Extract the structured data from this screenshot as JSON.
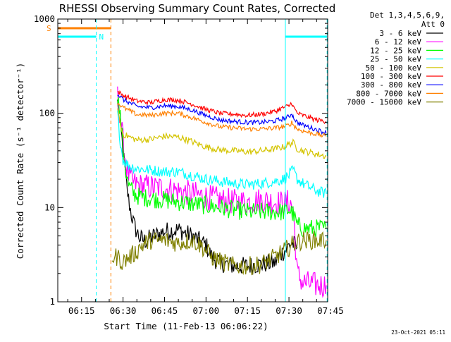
{
  "chart_data": {
    "type": "line",
    "title": "RHESSI Observing Summary Count Rates, Corrected",
    "xlabel": "Start Time (11-Feb-13 06:06:22)",
    "ylabel": "Corrected Count Rate (s⁻¹ detector⁻¹)",
    "y_scale": "log",
    "ylim": [
      1,
      1000
    ],
    "xlim_minutes": [
      6.4,
      104.0
    ],
    "x_ticks": [
      {
        "label": "06:15",
        "minutes": 15
      },
      {
        "label": "06:30",
        "minutes": 30
      },
      {
        "label": "06:45",
        "minutes": 45
      },
      {
        "label": "07:00",
        "minutes": 60
      },
      {
        "label": "07:15",
        "minutes": 75
      },
      {
        "label": "07:30",
        "minutes": 90
      },
      {
        "label": "07:45",
        "minutes": 105
      }
    ],
    "y_ticks": [
      {
        "label": "1",
        "value": 1
      },
      {
        "label": "10",
        "value": 10
      },
      {
        "label": "100",
        "value": 100
      },
      {
        "label": "1000",
        "value": 1000
      }
    ],
    "legend": {
      "header": [
        "Det 1,3,4,5,6,9,",
        "Att 0"
      ],
      "placement": "right",
      "entries": [
        {
          "label": "3 - 6 keV",
          "color": "#000000"
        },
        {
          "label": "6 - 12 keV",
          "color": "#ff00ff"
        },
        {
          "label": "12 - 25 keV",
          "color": "#00ff00"
        },
        {
          "label": "25 - 50 keV",
          "color": "#00ffff"
        },
        {
          "label": "50 - 100 keV",
          "color": "#d4c400"
        },
        {
          "label": "100 - 300 keV",
          "color": "#ff0000"
        },
        {
          "label": "300 - 800 keV",
          "color": "#0000ff"
        },
        {
          "label": "800 - 7000 keV",
          "color": "#ff8000"
        },
        {
          "label": "7000 - 15000 keV",
          "color": "#808000"
        }
      ]
    },
    "flags": [
      {
        "label": "S",
        "color": "#ff8000",
        "level": 800,
        "spans_minutes": [
          [
            6.4,
            25.6
          ]
        ]
      },
      {
        "label": "N",
        "color": "#00ffff",
        "level": 650,
        "spans_minutes": [
          [
            6.4,
            20.3
          ],
          [
            88.7,
            103.8
          ]
        ]
      }
    ],
    "markers": [
      {
        "color": "#ff8000",
        "minutes": 25.6,
        "style": "dashed"
      },
      {
        "color": "#00ffff",
        "minutes": 20.3,
        "style": "dashed"
      },
      {
        "color": "#00ffff",
        "minutes": 88.7,
        "style": "solid"
      },
      {
        "color": "#00ffff",
        "minutes": 103.8,
        "style": "dashed"
      }
    ],
    "series": [
      {
        "name": "3 - 6 keV",
        "color": "#000000",
        "x": [
          28.0,
          29.0,
          30.0,
          31.0,
          32.0,
          33.0,
          34.0,
          35.0,
          36.0,
          38.0,
          40.0,
          45.0,
          50.0,
          55.0,
          60.0,
          62.0,
          65.0,
          70.0,
          75.0,
          80.0,
          85.0,
          87.0,
          89.0,
          90.0,
          91.0,
          93.0
        ],
        "y": [
          130,
          80,
          40,
          20,
          12,
          8.5,
          6.5,
          5.5,
          4.8,
          4.4,
          4.8,
          5.6,
          5.8,
          5.0,
          4.0,
          3.0,
          2.6,
          2.4,
          2.4,
          2.5,
          2.6,
          3.2,
          3.6,
          4.0,
          4.2,
          3.8
        ]
      },
      {
        "name": "6 - 12 keV",
        "color": "#ff00ff",
        "x": [
          28.0,
          29.0,
          30.0,
          31.0,
          32.0,
          33.0,
          34.0,
          36.0,
          40.0,
          45.0,
          50.0,
          55.0,
          60.0,
          65.0,
          70.0,
          75.0,
          80.0,
          85.0,
          88.0,
          90.0,
          91.5,
          93.0,
          95.0,
          100.0,
          103.5
        ],
        "y": [
          150,
          90,
          50,
          30,
          22,
          19,
          18,
          17,
          16.5,
          16,
          15,
          14,
          13,
          12,
          11.5,
          11.5,
          12,
          11.5,
          11,
          11.5,
          10,
          2.0,
          1.6,
          1.5,
          1.5
        ]
      },
      {
        "name": "12 - 25 keV",
        "color": "#00ff00",
        "x": [
          28.0,
          29.0,
          30.0,
          31.0,
          32.0,
          34.0,
          36.0,
          40.0,
          45.0,
          50.0,
          55.0,
          60.0,
          65.0,
          70.0,
          75.0,
          80.0,
          85.0,
          88.0,
          90.0,
          91.5,
          93.0,
          95.0,
          100.0,
          103.5
        ],
        "y": [
          160,
          90,
          45,
          24,
          17,
          14,
          13,
          12.5,
          12,
          11.5,
          11,
          10.5,
          10,
          9.5,
          9.0,
          9.0,
          9.0,
          9.0,
          9.5,
          8.5,
          6.5,
          6.0,
          6.0,
          6.0
        ]
      },
      {
        "name": "25 - 50 keV",
        "color": "#00ffff",
        "x": [
          28.0,
          29.0,
          30.0,
          32.0,
          35.0,
          40.0,
          45.0,
          50.0,
          55.0,
          60.0,
          65.0,
          70.0,
          75.0,
          80.0,
          85.0,
          88.0,
          90.0,
          91.5,
          93.0,
          95.0,
          100.0,
          103.5
        ],
        "y": [
          100,
          50,
          32,
          28,
          26,
          25,
          24,
          24,
          22,
          20,
          19,
          18,
          17.5,
          18,
          19,
          20,
          22,
          25,
          20,
          18,
          15,
          14
        ]
      },
      {
        "name": "50 - 100 keV",
        "color": "#d4c400",
        "x": [
          28.0,
          29.0,
          30.0,
          35.0,
          40.0,
          45.0,
          50.0,
          55.0,
          60.0,
          65.0,
          70.0,
          75.0,
          80.0,
          85.0,
          88.0,
          90.0,
          91.5,
          93.0,
          95.0,
          100.0,
          103.5
        ],
        "y": [
          120,
          75,
          60,
          52,
          53,
          57,
          56,
          50,
          44,
          41,
          40,
          39,
          40,
          42,
          44,
          47,
          49,
          42,
          40,
          37,
          35
        ]
      },
      {
        "name": "100 - 300 keV",
        "color": "#ff0000",
        "x": [
          28.0,
          30.0,
          35.0,
          40.0,
          45.0,
          50.0,
          55.0,
          60.0,
          65.0,
          70.0,
          75.0,
          80.0,
          85.0,
          88.0,
          90.0,
          91.0,
          91.5,
          93.0,
          95.0,
          100.0,
          103.5
        ],
        "y": [
          170,
          155,
          135,
          130,
          140,
          138,
          125,
          110,
          100,
          98,
          95,
          98,
          105,
          115,
          120,
          130,
          118,
          100,
          95,
          85,
          82
        ]
      },
      {
        "name": "300 - 800 keV",
        "color": "#0000ff",
        "x": [
          28.0,
          30.0,
          35.0,
          40.0,
          45.0,
          50.0,
          55.0,
          60.0,
          65.0,
          70.0,
          75.0,
          80.0,
          85.0,
          88.0,
          90.0,
          91.0,
          91.5,
          93.0,
          95.0,
          100.0,
          103.5
        ],
        "y": [
          160,
          140,
          118,
          115,
          120,
          118,
          108,
          95,
          85,
          82,
          80,
          80,
          83,
          88,
          92,
          100,
          92,
          80,
          75,
          67,
          62
        ]
      },
      {
        "name": "800 - 7000 keV",
        "color": "#ff8000",
        "x": [
          28.0,
          30.0,
          35.0,
          40.0,
          45.0,
          50.0,
          55.0,
          60.0,
          65.0,
          70.0,
          75.0,
          80.0,
          85.0,
          88.0,
          90.0,
          91.0,
          91.5,
          93.0,
          95.0,
          100.0,
          103.5
        ],
        "y": [
          130,
          115,
          97,
          95,
          100,
          100,
          90,
          80,
          72,
          70,
          68,
          68,
          70,
          72,
          75,
          80,
          76,
          68,
          65,
          60,
          57
        ]
      },
      {
        "name": "7000 - 15000 keV",
        "color": "#808000",
        "x": [
          26.0,
          28.0,
          29.0,
          30.0,
          31.0,
          35.0,
          36.0,
          38.0,
          40.0,
          45.0,
          50.0,
          55.0,
          58.0,
          60.0,
          62.0,
          65.0,
          70.0,
          75.0,
          80.0,
          85.0,
          88.0,
          90.0,
          92.0,
          95.0,
          100.0,
          103.5
        ],
        "y": [
          3.0,
          3.0,
          2.8,
          2.6,
          2.8,
          3.4,
          3.8,
          4.2,
          4.5,
          4.5,
          4.2,
          4.5,
          4.0,
          3.5,
          3.0,
          2.7,
          2.4,
          2.4,
          2.5,
          3.0,
          3.4,
          3.8,
          4.2,
          4.5,
          4.5,
          4.5
        ]
      }
    ]
  },
  "footer": {
    "date": "23-Oct-2021 05:11"
  }
}
